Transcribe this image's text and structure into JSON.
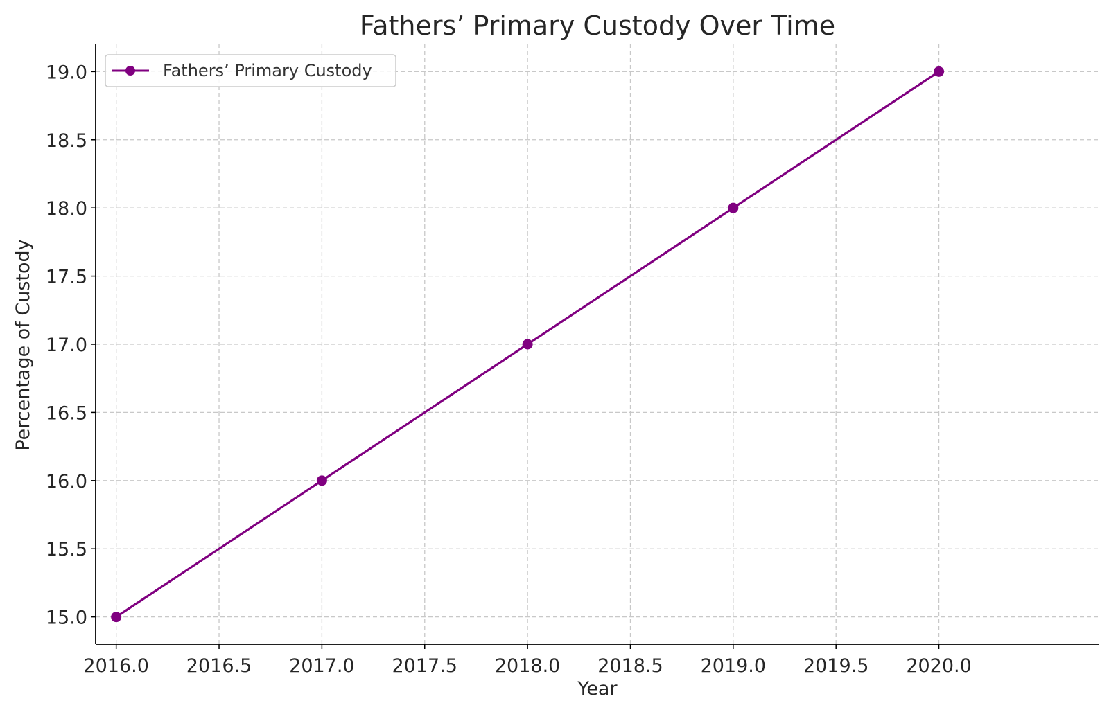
{
  "chart_data": {
    "type": "line",
    "title": "Fathers’ Primary Custody Over Time",
    "xlabel": "Year",
    "ylabel": "Percentage of Custody",
    "xlim": [
      2015.9,
      2020.78
    ],
    "ylim": [
      14.8,
      19.2
    ],
    "xticks": [
      2016.0,
      2016.5,
      2017.0,
      2017.5,
      2018.0,
      2018.5,
      2019.0,
      2019.5,
      2020.0
    ],
    "xtick_labels": [
      "2016.0",
      "2016.5",
      "2017.0",
      "2017.5",
      "2018.0",
      "2018.5",
      "2019.0",
      "2019.5",
      "2020.0"
    ],
    "yticks": [
      15.0,
      15.5,
      16.0,
      16.5,
      17.0,
      17.5,
      18.0,
      18.5,
      19.0
    ],
    "ytick_labels": [
      "15.0",
      "15.5",
      "16.0",
      "16.5",
      "17.0",
      "17.5",
      "18.0",
      "18.5",
      "19.0"
    ],
    "grid": true,
    "legend_position": "top-left",
    "series": [
      {
        "name": "Fathers’ Primary Custody",
        "color": "#800080",
        "marker": "circle",
        "x": [
          2016,
          2017,
          2018,
          2019,
          2020
        ],
        "y": [
          15,
          16,
          17,
          18,
          19
        ]
      }
    ]
  }
}
